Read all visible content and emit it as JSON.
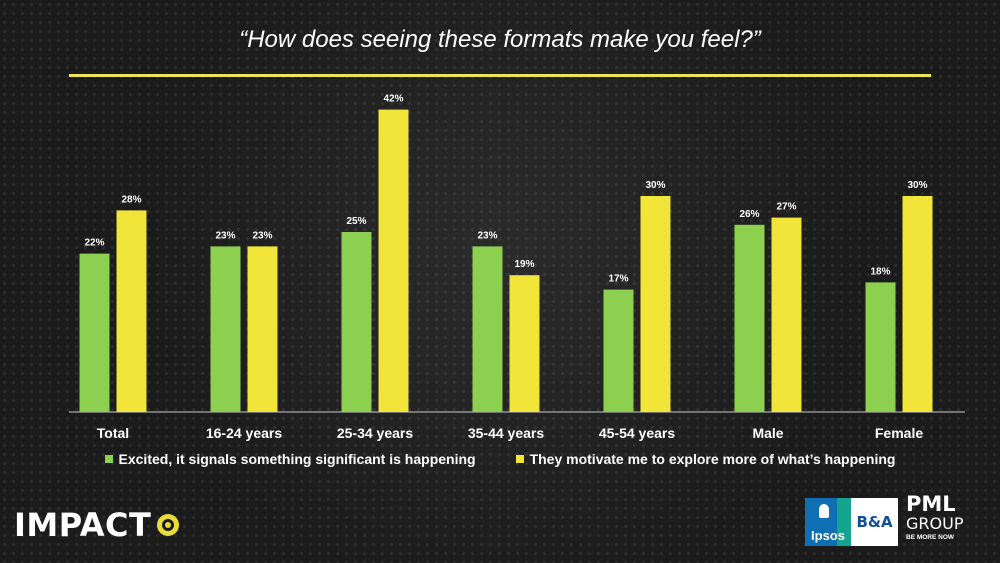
{
  "title": "“How does seeing these formats make you feel?”",
  "colors": {
    "series_1": "#8dcf4e",
    "series_2": "#f2e53a",
    "rule": "#ede35c",
    "axis": "#c8c8c8"
  },
  "chart_data": {
    "type": "bar",
    "title": "“How does seeing these formats make you feel?”",
    "categories": [
      "Total",
      "16-24 years",
      "25-34 years",
      "35-44 years",
      "45-54 years",
      "Male",
      "Female"
    ],
    "series": [
      {
        "name": "Excited, it signals something significant is happening",
        "values": [
          22,
          23,
          25,
          23,
          17,
          26,
          18
        ]
      },
      {
        "name": "They motivate me to explore more of what’s happening",
        "values": [
          28,
          23,
          42,
          19,
          30,
          27,
          30
        ]
      }
    ],
    "value_suffix": "%",
    "ylim": [
      0,
      42
    ],
    "grid": false,
    "legend_position": "bottom"
  },
  "legend": {
    "series_1_label": "Excited, it signals something significant is happening",
    "series_2_label": "They motivate me to explore more of what’s happening"
  },
  "logos": {
    "impact": "IMPACT",
    "ipsos": "Ipsos",
    "ba": "B&A",
    "pml": "PML",
    "group": "GROUP",
    "tagline": "BE MORE NOW"
  }
}
